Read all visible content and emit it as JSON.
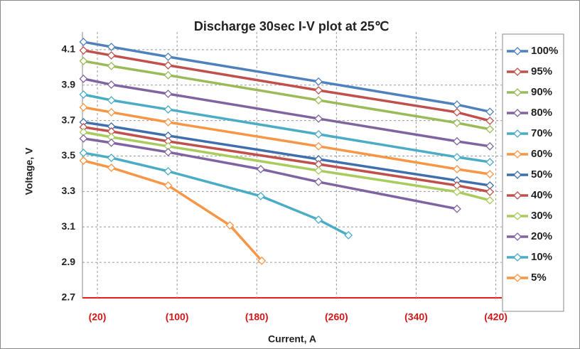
{
  "chart_data": {
    "type": "line",
    "title": "Discharge 30sec I-V plot at 25℃",
    "x_label": "Current, A",
    "y_label": "Voltage, V",
    "xlim": [
      5,
      426
    ],
    "ylim": [
      2.7,
      4.2
    ],
    "xticks": [
      {
        "value": 20,
        "label": "(20)"
      },
      {
        "value": 100,
        "label": "(100)"
      },
      {
        "value": 180,
        "label": "(180)"
      },
      {
        "value": 260,
        "label": "(260)"
      },
      {
        "value": 340,
        "label": "(340)"
      },
      {
        "value": 420,
        "label": "(420)"
      }
    ],
    "yticks": [
      2.7,
      2.9,
      3.1,
      3.3,
      3.5,
      3.7,
      3.9,
      4.1
    ],
    "grid": true,
    "legend": "right",
    "series": [
      {
        "name": "100%",
        "color": "#4f81bd",
        "x": [
          6,
          34,
          91,
          242,
          381,
          414
        ],
        "values": [
          4.144,
          4.116,
          4.06,
          3.92,
          3.79,
          3.75
        ]
      },
      {
        "name": "95%",
        "color": "#c0504d",
        "x": [
          6,
          34,
          91,
          242,
          381,
          414
        ],
        "values": [
          4.096,
          4.068,
          4.012,
          3.871,
          3.747,
          3.699
        ]
      },
      {
        "name": "90%",
        "color": "#9bbb59",
        "x": [
          6,
          34,
          91,
          242,
          381,
          414
        ],
        "values": [
          4.036,
          4.008,
          3.956,
          3.815,
          3.687,
          3.651
        ]
      },
      {
        "name": "80%",
        "color": "#8064a2",
        "x": [
          6,
          34,
          91,
          242,
          381,
          414
        ],
        "values": [
          3.936,
          3.903,
          3.851,
          3.711,
          3.583,
          3.555
        ]
      },
      {
        "name": "70%",
        "color": "#4bacc6",
        "x": [
          6,
          34,
          91,
          242,
          381,
          414
        ],
        "values": [
          3.847,
          3.815,
          3.763,
          3.623,
          3.494,
          3.466
        ]
      },
      {
        "name": "60%",
        "color": "#f79646",
        "x": [
          6,
          34,
          91,
          242,
          381,
          414
        ],
        "values": [
          3.775,
          3.747,
          3.691,
          3.555,
          3.426,
          3.398
        ]
      },
      {
        "name": "50%",
        "color": "#3f6fae",
        "x": [
          6,
          34,
          91,
          242,
          381,
          414
        ],
        "values": [
          3.691,
          3.667,
          3.615,
          3.482,
          3.362,
          3.334
        ]
      },
      {
        "name": "40%",
        "color": "#c0504d",
        "x": [
          6,
          34,
          91,
          242,
          381,
          414
        ],
        "values": [
          3.663,
          3.639,
          3.583,
          3.454,
          3.334,
          3.298
        ]
      },
      {
        "name": "30%",
        "color": "#a9cc5e",
        "x": [
          6,
          34,
          91,
          242,
          381,
          414
        ],
        "values": [
          3.635,
          3.607,
          3.555,
          3.418,
          3.298,
          3.25
        ]
      },
      {
        "name": "20%",
        "color": "#8064a2",
        "x": [
          6,
          34,
          91,
          184,
          242,
          381
        ],
        "values": [
          3.599,
          3.575,
          3.522,
          3.426,
          3.354,
          3.202
        ]
      },
      {
        "name": "10%",
        "color": "#4bacc6",
        "x": [
          6,
          34,
          91,
          184,
          242,
          272
        ],
        "values": [
          3.518,
          3.49,
          3.414,
          3.274,
          3.141,
          3.053
        ]
      },
      {
        "name": "5%",
        "color": "#f79646",
        "x": [
          6,
          34,
          91,
          153,
          185
        ],
        "values": [
          3.474,
          3.434,
          3.334,
          3.109,
          2.909
        ]
      }
    ]
  }
}
